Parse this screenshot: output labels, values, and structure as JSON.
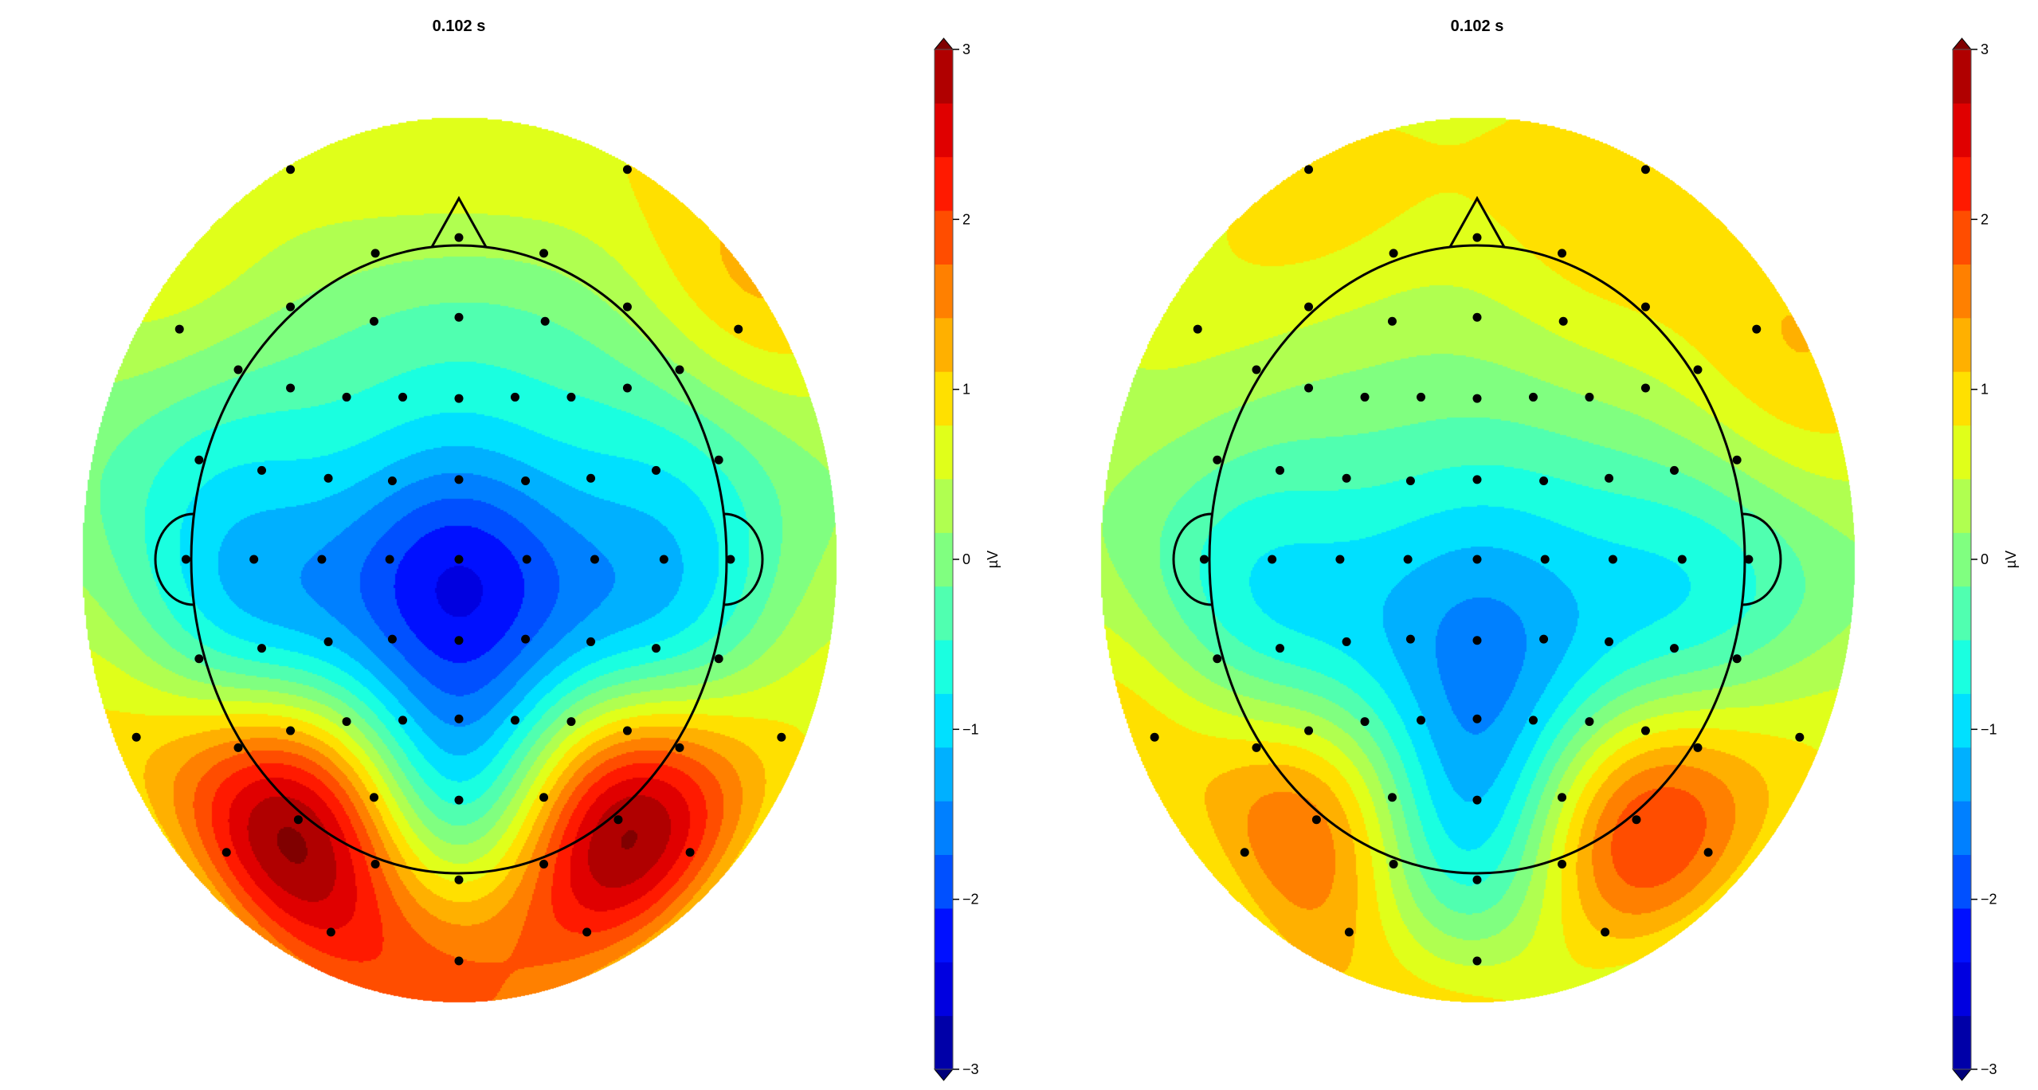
{
  "chart_data": [
    {
      "type": "heatmap",
      "subtype": "topomap",
      "title": "0.102 s",
      "colorbar": {
        "label": "µV",
        "range": [
          -3,
          3
        ],
        "ticks": [
          3,
          2,
          1,
          0,
          -1,
          -2,
          -3
        ],
        "tick_labels": [
          "3",
          "2",
          "1",
          "0",
          "−1",
          "−2",
          "−3"
        ],
        "extend": "both"
      },
      "n_levels": 19,
      "colormap": [
        "#0000a8",
        "#0000e0",
        "#0010ff",
        "#0050ff",
        "#0080ff",
        "#00b0ff",
        "#00e0ff",
        "#1affe0",
        "#50ffb0",
        "#80ff80",
        "#b0ff50",
        "#e0ff1a",
        "#ffe000",
        "#ffb000",
        "#ff8000",
        "#ff4d00",
        "#ff1a00",
        "#e00000",
        "#b00000"
      ],
      "under_color": "#00007a",
      "over_color": "#800000",
      "electrode_values_uv": [
        0.6,
        0.8,
        0.3,
        0.3,
        0.3,
        0.1,
        0.2,
        0.4,
        0.9,
        -0.2,
        -0.3,
        -0.2,
        -0.1,
        0.2,
        -0.3,
        -0.5,
        -0.6,
        -0.7,
        -0.6,
        -0.5,
        -0.3,
        -0.7,
        -0.5,
        -0.9,
        -1.0,
        -1.2,
        -1.5,
        -1.2,
        -1.0,
        -0.9,
        -0.8,
        -1.2,
        -1.5,
        -1.9,
        -2.6,
        -1.9,
        -1.5,
        -1.1,
        -0.6,
        -0.3,
        -0.2,
        -0.8,
        -1.1,
        -1.7,
        -2.4,
        -1.7,
        -1.1,
        -0.8,
        1.0,
        0.9,
        1.8,
        1.8,
        0.9,
        0.2,
        -0.7,
        -1.5,
        -0.7,
        0.2,
        0.9,
        0.9,
        0.9,
        -0.8,
        3.3,
        3.3,
        2.0,
        2.0,
        1.8,
        1.8,
        0.9,
        2.3,
        2.0,
        1.8
      ]
    },
    {
      "type": "heatmap",
      "subtype": "topomap",
      "title": "0.102 s",
      "colorbar": {
        "label": "µV",
        "range": [
          -3,
          3
        ],
        "ticks": [
          3,
          2,
          1,
          0,
          -1,
          -2,
          -3
        ],
        "tick_labels": [
          "3",
          "2",
          "1",
          "0",
          "−1",
          "−2",
          "−3"
        ],
        "extend": "both"
      },
      "n_levels": 19,
      "colormap": [
        "#0000a8",
        "#0000e0",
        "#0010ff",
        "#0050ff",
        "#0080ff",
        "#00b0ff",
        "#00e0ff",
        "#1affe0",
        "#50ffb0",
        "#80ff80",
        "#b0ff50",
        "#e0ff1a",
        "#ffe000",
        "#ffb000",
        "#ff8000",
        "#ff4d00",
        "#ff1a00",
        "#e00000",
        "#b00000"
      ],
      "under_color": "#00007a",
      "over_color": "#800000",
      "electrode_values_uv": [
        0.9,
        1.0,
        0.7,
        0.7,
        0.9,
        0.6,
        0.8,
        0.6,
        1.1,
        0.3,
        0.3,
        0.6,
        0.3,
        0.6,
        0.1,
        0.0,
        0.0,
        0.0,
        0.0,
        0.1,
        0.5,
        -0.1,
        0.3,
        -0.3,
        -0.4,
        -0.5,
        -0.6,
        -0.5,
        -0.4,
        -0.2,
        -0.5,
        -0.9,
        -0.9,
        -1.0,
        -1.3,
        -1.0,
        -0.9,
        -0.8,
        -0.5,
        -0.2,
        -0.2,
        -0.5,
        -0.8,
        -1.2,
        -1.7,
        -1.2,
        -0.8,
        -0.4,
        1.0,
        0.8,
        1.0,
        1.2,
        0.2,
        -0.4,
        -1.0,
        -1.4,
        -1.0,
        -0.3,
        0.5,
        0.3,
        0.7,
        -1.4,
        1.8,
        2.2,
        1.2,
        1.5,
        0.0,
        0.6,
        -0.4,
        1.2,
        1.1,
        0.5
      ]
    }
  ]
}
